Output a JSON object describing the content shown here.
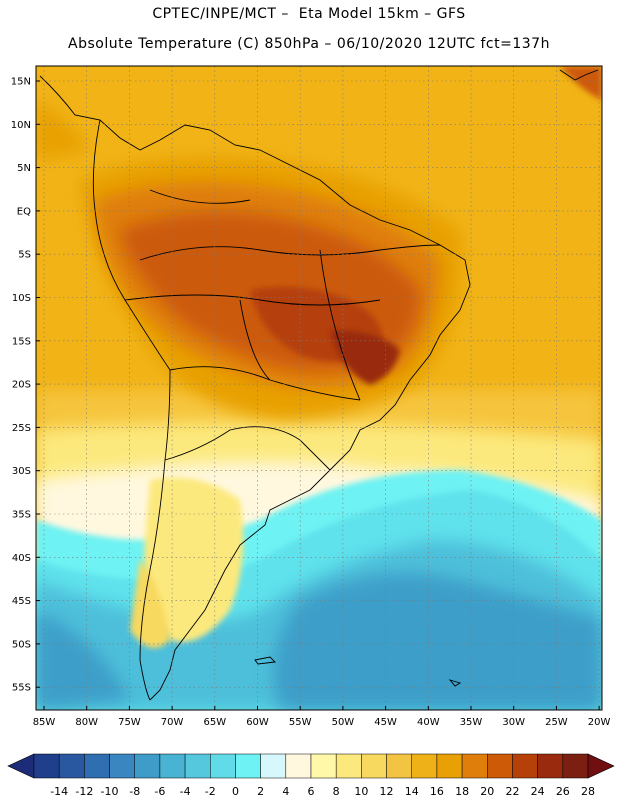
{
  "header": {
    "line1": "CPTEC/INPE/MCT –  Eta Model 15km – GFS",
    "line2": "Absolute Temperature (C) 850hPa – 06/10/2020 12UTC fct=137h"
  },
  "axes": {
    "lat_labels": [
      "15N",
      "10N",
      "5N",
      "EQ",
      "5S",
      "10S",
      "15S",
      "20S",
      "25S",
      "30S",
      "35S",
      "40S",
      "45S",
      "50S",
      "55S"
    ],
    "lon_labels": [
      "85W",
      "80W",
      "75W",
      "70W",
      "65W",
      "60W",
      "55W",
      "50W",
      "45W",
      "40W",
      "35W",
      "30W",
      "25W",
      "20W"
    ]
  },
  "colorbar": {
    "labels": [
      "-14",
      "-12",
      "-10",
      "-8",
      "-6",
      "-4",
      "-2",
      "0",
      "2",
      "4",
      "6",
      "8",
      "10",
      "12",
      "14",
      "16",
      "18",
      "20",
      "22",
      "24",
      "26",
      "28"
    ],
    "colors": [
      "#1f3e8c",
      "#2a58a0",
      "#2f6fb1",
      "#3a86c0",
      "#3f9cc8",
      "#48b3d3",
      "#56c8de",
      "#62dbe8",
      "#6ef2f3",
      "#d6f7fb",
      "#fff8df",
      "#fef8a8",
      "#fce97d",
      "#f8d95f",
      "#f2c441",
      "#efb118",
      "#e8a004",
      "#df7e0b",
      "#cc5a07",
      "#b54008",
      "#992a0d",
      "#7a1f12"
    ],
    "left_arrow_color": "#1d2c78",
    "right_arrow_color": "#6f0f12"
  },
  "legend_colors": {
    "ocean_south_dark": "#3e9fc9",
    "ocean_south_mid": "#4dbfda",
    "ocean_cyan": "#5ee2ec",
    "warm_base": "#f1b316",
    "hot": "#df7e0b",
    "very_hot": "#cc5a07",
    "pale": "#fce97d"
  }
}
